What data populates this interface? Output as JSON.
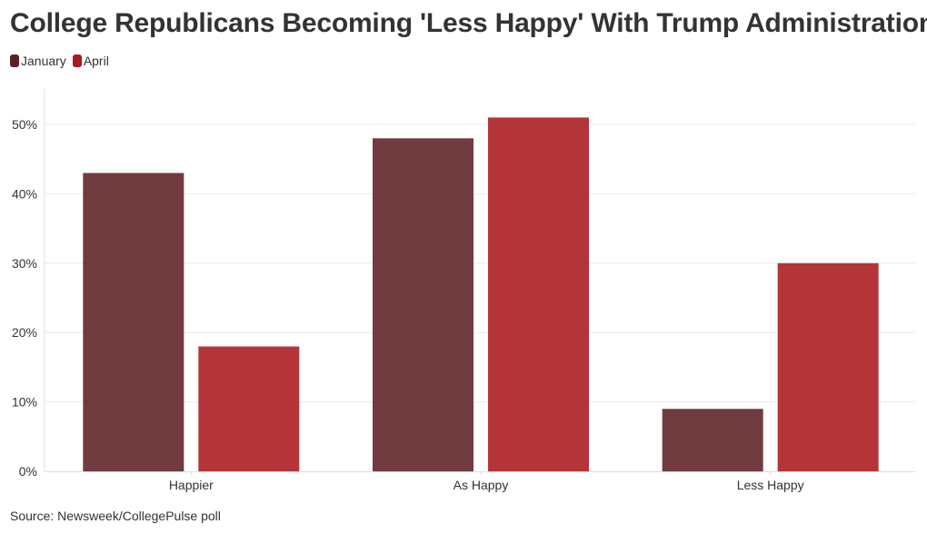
{
  "chart_data": {
    "type": "bar",
    "title": "College Republicans Becoming 'Less Happy' With Trump Administration",
    "categories": [
      "Happier",
      "As Happy",
      "Less Happy"
    ],
    "series": [
      {
        "name": "January",
        "values": [
          43,
          48,
          9
        ],
        "color": "#5c2124"
      },
      {
        "name": "April",
        "values": [
          18,
          51,
          30
        ],
        "color": "#a9191e"
      }
    ],
    "ylim": [
      0,
      55
    ],
    "yticks": [
      0,
      10,
      20,
      30,
      40,
      50
    ],
    "ytick_suffix": "%",
    "grid": true,
    "legend_position": "top-left",
    "source": "Source: Newsweek/CollegePulse poll"
  }
}
